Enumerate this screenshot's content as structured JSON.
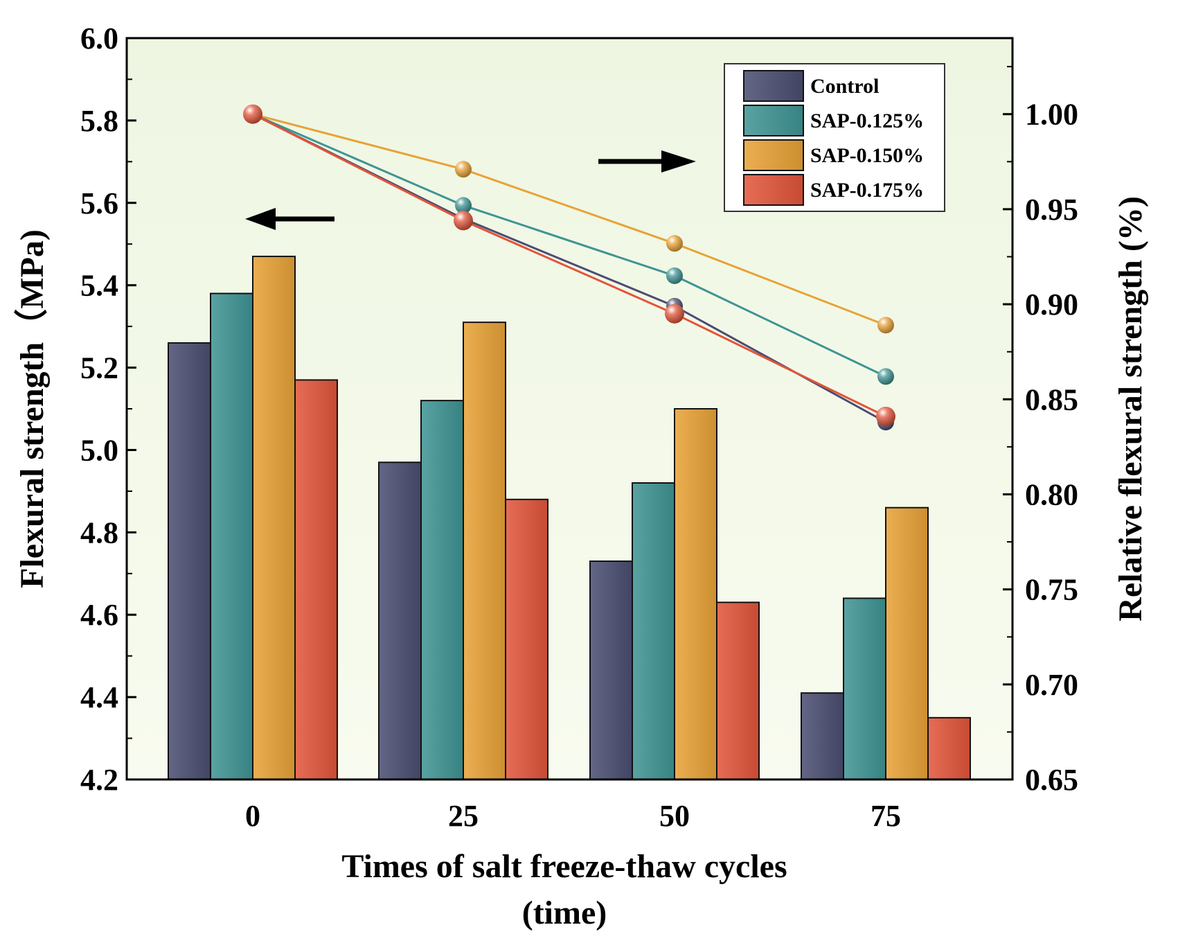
{
  "chart_data": {
    "type": "bar",
    "xlabel": [
      "Times of salt freeze-thaw cycles",
      "(time)"
    ],
    "ylabel_left": "Flexural strength（MPa)",
    "ylabel_right": "Relative flexural strength (%)",
    "categories": [
      "0",
      "25",
      "50",
      "75"
    ],
    "ylim_left": [
      4.2,
      6.0
    ],
    "yticks_left": [
      4.2,
      4.4,
      4.6,
      4.8,
      5.0,
      5.2,
      5.4,
      5.6,
      5.8,
      6.0
    ],
    "ytick_labels_left": [
      "4.2",
      "4.4",
      "4.6",
      "4.8",
      "5.0",
      "5.2",
      "5.4",
      "5.6",
      "5.8",
      "6.0"
    ],
    "ylim_right": [
      0.65,
      1.04
    ],
    "yticks_right": [
      0.65,
      0.7,
      0.75,
      0.8,
      0.85,
      0.9,
      0.95,
      1.0
    ],
    "ytick_labels_right": [
      "0.65",
      "0.70",
      "0.75",
      "0.80",
      "0.85",
      "0.90",
      "0.95",
      "1.00"
    ],
    "series": [
      {
        "name": "Control",
        "values": [
          5.26,
          4.97,
          4.73,
          4.41
        ],
        "relative": [
          1.0,
          0.945,
          0.899,
          0.838
        ],
        "color": "#4b4d72"
      },
      {
        "name": "SAP-0.125%",
        "values": [
          5.38,
          5.12,
          4.92,
          4.64
        ],
        "relative": [
          1.0,
          0.952,
          0.915,
          0.862
        ],
        "color": "#3f9494"
      },
      {
        "name": "SAP-0.150%",
        "values": [
          5.47,
          5.31,
          5.1,
          4.86
        ],
        "relative": [
          1.0,
          0.971,
          0.932,
          0.889
        ],
        "color": "#e8a236"
      },
      {
        "name": "SAP-0.175%",
        "values": [
          5.17,
          4.88,
          4.63,
          4.35
        ],
        "relative": [
          1.0,
          0.944,
          0.895,
          0.841
        ],
        "color": "#e2553a"
      }
    ],
    "legend_position": "top-right",
    "background_gradient": [
      "#eef6e2",
      "#f8fbef"
    ],
    "annotations": [
      {
        "type": "arrow",
        "direction": "left",
        "meaning": "bars refer to left axis"
      },
      {
        "type": "arrow",
        "direction": "right",
        "meaning": "lines refer to right axis"
      }
    ]
  }
}
